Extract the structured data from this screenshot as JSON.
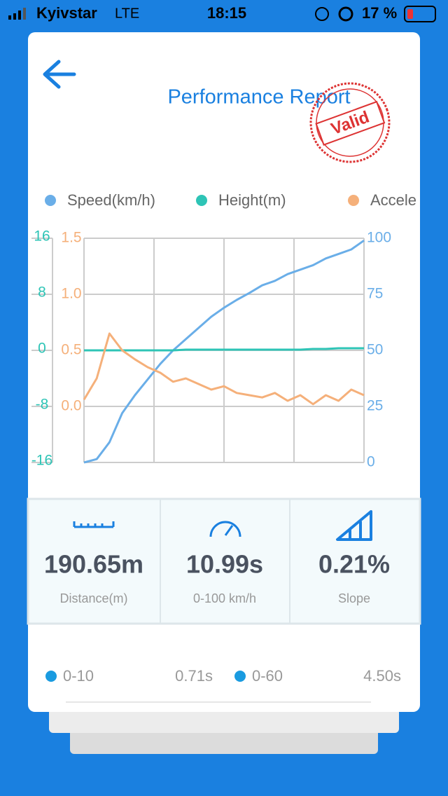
{
  "status_bar": {
    "carrier": "Kyivstar",
    "network": "LTE",
    "time": "18:15",
    "battery": "17 %"
  },
  "header": {
    "title": "Performance Report",
    "stamp": "Valid"
  },
  "chart_data": {
    "type": "line",
    "x": [
      0,
      0.5,
      1,
      1.5,
      2,
      2.5,
      3,
      3.5,
      4,
      4.5,
      5,
      5.5,
      6,
      6.5,
      7,
      7.5,
      8,
      8.5,
      9,
      9.5,
      10,
      10.5,
      11
    ],
    "xlim": [
      0,
      11
    ],
    "ylim": [
      0,
      100
    ],
    "yticks": [
      0,
      25,
      50,
      75,
      100
    ],
    "y2lim": [
      -16,
      16
    ],
    "y2ticks": [
      -16,
      -8,
      0,
      8,
      16
    ],
    "y3lim": [
      -0.5,
      1.5
    ],
    "y3ticks": [
      {
        "value": 0,
        "label": "0.0"
      },
      0.5,
      {
        "value": 1,
        "label": "1.0"
      },
      1.5
    ],
    "grid": true,
    "series": [
      {
        "name": "Speed(km/h)",
        "color": "#6aaee8",
        "axis": "y",
        "values": [
          0,
          1.5,
          9,
          22,
          30,
          37,
          44,
          50,
          55,
          60,
          65,
          69,
          72.5,
          75.6,
          79,
          81,
          84,
          86,
          88,
          91,
          93,
          95,
          99
        ]
      },
      {
        "name": "Height(m)",
        "color": "#2ec4b6",
        "axis": "y2",
        "values": [
          0,
          0,
          0,
          0,
          0,
          0,
          0,
          0,
          0.1,
          0.1,
          0.1,
          0.1,
          0.1,
          0.1,
          0.1,
          0.1,
          0.1,
          0.1,
          0.2,
          0.2,
          0.3,
          0.3,
          0.3
        ]
      },
      {
        "name": "Accele",
        "color": "#f5b07a",
        "axis": "y3",
        "values": [
          0.06,
          0.25,
          0.65,
          0.5,
          0.42,
          0.35,
          0.3,
          0.22,
          0.25,
          0.2,
          0.15,
          0.18,
          0.12,
          0.1,
          0.08,
          0.12,
          0.05,
          0.1,
          0.02,
          0.1,
          0.05,
          0.15,
          0.1
        ]
      }
    ]
  },
  "stats": [
    {
      "value": "190.65m",
      "label": "Distance(m)"
    },
    {
      "value": "10.99s",
      "label": "0-100 km/h"
    },
    {
      "value": "0.21%",
      "label": "Slope"
    }
  ],
  "splits": [
    {
      "label": "0-10",
      "time": "0.71s"
    },
    {
      "label": "0-60",
      "time": "4.50s"
    }
  ]
}
